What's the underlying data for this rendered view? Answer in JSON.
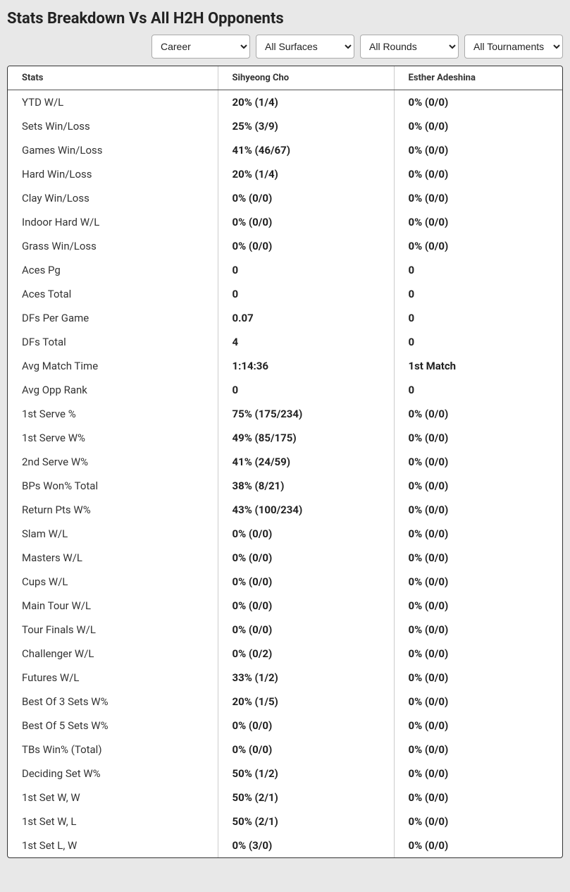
{
  "title": "Stats Breakdown Vs All H2H Opponents",
  "filters": {
    "career": {
      "selected": "Career",
      "options": [
        "Career"
      ]
    },
    "surfaces": {
      "selected": "All Surfaces",
      "options": [
        "All Surfaces"
      ]
    },
    "rounds": {
      "selected": "All Rounds",
      "options": [
        "All Rounds"
      ]
    },
    "tournaments": {
      "selected": "All Tournaments",
      "options": [
        "All Tournaments"
      ]
    }
  },
  "table": {
    "columns": [
      "Stats",
      "Sihyeong Cho",
      "Esther Adeshina"
    ],
    "rows": [
      [
        "YTD W/L",
        "20% (1/4)",
        "0% (0/0)"
      ],
      [
        "Sets Win/Loss",
        "25% (3/9)",
        "0% (0/0)"
      ],
      [
        "Games Win/Loss",
        "41% (46/67)",
        "0% (0/0)"
      ],
      [
        "Hard Win/Loss",
        "20% (1/4)",
        "0% (0/0)"
      ],
      [
        "Clay Win/Loss",
        "0% (0/0)",
        "0% (0/0)"
      ],
      [
        "Indoor Hard W/L",
        "0% (0/0)",
        "0% (0/0)"
      ],
      [
        "Grass Win/Loss",
        "0% (0/0)",
        "0% (0/0)"
      ],
      [
        "Aces Pg",
        "0",
        "0"
      ],
      [
        "Aces Total",
        "0",
        "0"
      ],
      [
        "DFs Per Game",
        "0.07",
        "0"
      ],
      [
        "DFs Total",
        "4",
        "0"
      ],
      [
        "Avg Match Time",
        "1:14:36",
        "1st Match"
      ],
      [
        "Avg Opp Rank",
        "0",
        "0"
      ],
      [
        "1st Serve %",
        "75% (175/234)",
        "0% (0/0)"
      ],
      [
        "1st Serve W%",
        "49% (85/175)",
        "0% (0/0)"
      ],
      [
        "2nd Serve W%",
        "41% (24/59)",
        "0% (0/0)"
      ],
      [
        "BPs Won% Total",
        "38% (8/21)",
        "0% (0/0)"
      ],
      [
        "Return Pts W%",
        "43% (100/234)",
        "0% (0/0)"
      ],
      [
        "Slam W/L",
        "0% (0/0)",
        "0% (0/0)"
      ],
      [
        "Masters W/L",
        "0% (0/0)",
        "0% (0/0)"
      ],
      [
        "Cups W/L",
        "0% (0/0)",
        "0% (0/0)"
      ],
      [
        "Main Tour W/L",
        "0% (0/0)",
        "0% (0/0)"
      ],
      [
        "Tour Finals W/L",
        "0% (0/0)",
        "0% (0/0)"
      ],
      [
        "Challenger W/L",
        "0% (0/2)",
        "0% (0/0)"
      ],
      [
        "Futures W/L",
        "33% (1/2)",
        "0% (0/0)"
      ],
      [
        "Best Of 3 Sets W%",
        "20% (1/5)",
        "0% (0/0)"
      ],
      [
        "Best Of 5 Sets W%",
        "0% (0/0)",
        "0% (0/0)"
      ],
      [
        "TBs Win% (Total)",
        "0% (0/0)",
        "0% (0/0)"
      ],
      [
        "Deciding Set W%",
        "50% (1/2)",
        "0% (0/0)"
      ],
      [
        "1st Set W, W",
        "50% (2/1)",
        "0% (0/0)"
      ],
      [
        "1st Set W, L",
        "50% (2/1)",
        "0% (0/0)"
      ],
      [
        "1st Set L, W",
        "0% (3/0)",
        "0% (0/0)"
      ]
    ]
  }
}
